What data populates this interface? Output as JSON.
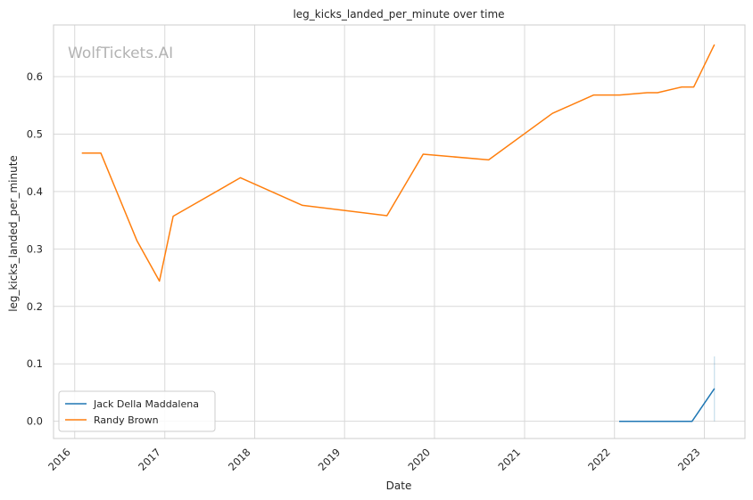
{
  "chart_data": {
    "type": "line",
    "title": "leg_kicks_landed_per_minute over time",
    "xlabel": "Date",
    "ylabel": "leg_kicks_landed_per_minute",
    "watermark": "WolfTickets.AI",
    "x_tick_labels": [
      "2016",
      "2017",
      "2018",
      "2019",
      "2020",
      "2021",
      "2022",
      "2023"
    ],
    "y_ticks": [
      0.0,
      0.1,
      0.2,
      0.3,
      0.4,
      0.5,
      0.6
    ],
    "y_tick_labels": [
      "0.0",
      "0.1",
      "0.2",
      "0.3",
      "0.4",
      "0.5",
      "0.6"
    ],
    "ylim": [
      -0.03,
      0.69
    ],
    "xlim": [
      "2015-10-07",
      "2023-06-15"
    ],
    "grid": true,
    "legend_position": "lower-left",
    "series": [
      {
        "name": "Jack Della Maddalena",
        "color": "#1f77b4",
        "x": [
          "2022-01-20",
          "2022-04-15",
          "2022-06-10",
          "2022-09-10",
          "2022-11-12",
          "2023-02-11"
        ],
        "y": [
          0.0,
          0.0,
          0.0,
          0.0,
          0.0,
          0.057
        ],
        "error_band": {
          "date": "2023-02-11",
          "low": 0.0,
          "high": 0.113
        }
      },
      {
        "name": "Randy Brown",
        "color": "#ff7f0e",
        "x": [
          "2016-01-30",
          "2016-04-16",
          "2016-09-10",
          "2016-12-10",
          "2017-02-04",
          "2017-11-04",
          "2018-07-14",
          "2019-06-22",
          "2019-11-16",
          "2020-08-08",
          "2021-04-24",
          "2021-10-09",
          "2022-01-22",
          "2022-05-14",
          "2022-06-25",
          "2022-10-01",
          "2022-11-19",
          "2023-02-11"
        ],
        "y": [
          0.467,
          0.467,
          0.314,
          0.244,
          0.357,
          0.424,
          0.376,
          0.358,
          0.465,
          0.455,
          0.536,
          0.568,
          0.568,
          0.572,
          0.572,
          0.582,
          0.582,
          0.656
        ]
      }
    ]
  }
}
